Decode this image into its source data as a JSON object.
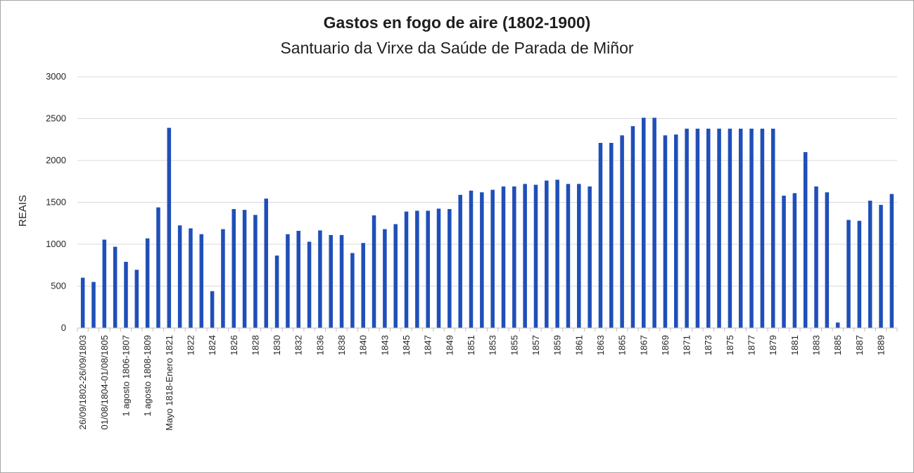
{
  "chart_data": {
    "type": "bar",
    "title": "Gastos en fogo de aire (1802-1900)",
    "subtitle": "Santuario da Virxe da Saúde de Parada de Miñor",
    "ylabel": "REAIS",
    "xlabel": "",
    "ylim": [
      0,
      3000
    ],
    "yticks": [
      0,
      500,
      1000,
      1500,
      2000,
      2500,
      3000
    ],
    "grid": true,
    "bar_color": "#1f4fb8",
    "categories": [
      "26/09/1802-26/09/1803",
      "",
      "01/08/1804-01/08/1805",
      "",
      "1 agosto 1806-1807",
      "",
      "1 agosto 1808-1809",
      "",
      "Mayo 1818-Enero 1821",
      "",
      "1822",
      "",
      "1824",
      "",
      "1826",
      "",
      "1828",
      "",
      "1830",
      "",
      "1832",
      "",
      "1836",
      "",
      "1838",
      "",
      "1840",
      "",
      "1843",
      "",
      "1845",
      "",
      "1847",
      "",
      "1849",
      "",
      "1851",
      "",
      "1853",
      "",
      "1855",
      "",
      "1857",
      "",
      "1859",
      "",
      "1861",
      "",
      "1863",
      "",
      "1865",
      "",
      "1867",
      "",
      "1869",
      "",
      "1871",
      "",
      "1873",
      "",
      "1875",
      "",
      "1877",
      "",
      "1879",
      "",
      "1881",
      "",
      "1883",
      "",
      "1885",
      "",
      "1887",
      "",
      "1889",
      ""
    ],
    "values": [
      600,
      550,
      1055,
      970,
      790,
      695,
      1070,
      1440,
      2390,
      1225,
      1190,
      1120,
      440,
      1180,
      1420,
      1410,
      1350,
      1545,
      865,
      1120,
      1160,
      1030,
      1165,
      1110,
      1110,
      895,
      1015,
      1345,
      1180,
      1240,
      1390,
      1400,
      1400,
      1425,
      1420,
      1590,
      1640,
      1620,
      1650,
      1690,
      1690,
      1720,
      1710,
      1760,
      1770,
      1720,
      1720,
      1690,
      2210,
      2210,
      2300,
      2410,
      2510,
      2510,
      2300,
      2310,
      2380,
      2380,
      2380,
      2380,
      2380,
      2380,
      2380,
      2380,
      2380,
      1580,
      1610,
      2100,
      1690,
      1620,
      65,
      1290,
      1280,
      1520,
      1470,
      1600
    ]
  }
}
